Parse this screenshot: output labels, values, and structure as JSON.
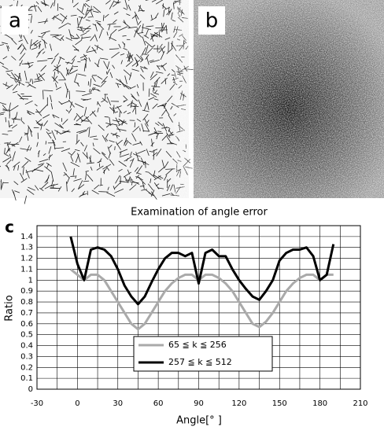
{
  "panels": {
    "a": "a",
    "b": "b"
  },
  "chart_data": {
    "type": "line",
    "panel_label": "c",
    "title": "Examination of angle error",
    "x_label": "Angle[° ]",
    "y_label": "Ratio",
    "x": [
      -5,
      0,
      5,
      10,
      15,
      20,
      25,
      30,
      35,
      40,
      45,
      50,
      55,
      60,
      65,
      70,
      75,
      80,
      85,
      90,
      95,
      100,
      105,
      110,
      115,
      120,
      125,
      130,
      135,
      140,
      145,
      150,
      155,
      160,
      165,
      170,
      175,
      180,
      185,
      190
    ],
    "series": [
      {
        "name": "65 ≦ k ≦ 256",
        "color": "#aaaaaa",
        "values": [
          1.1,
          1.05,
          1.0,
          1.05,
          1.05,
          1.0,
          0.9,
          0.8,
          0.7,
          0.6,
          0.55,
          0.6,
          0.7,
          0.8,
          0.9,
          0.97,
          1.02,
          1.05,
          1.05,
          1.0,
          1.05,
          1.05,
          1.02,
          0.97,
          0.9,
          0.8,
          0.7,
          0.6,
          0.57,
          0.62,
          0.7,
          0.8,
          0.9,
          0.97,
          1.02,
          1.05,
          1.05,
          1.0,
          1.05,
          1.05
        ]
      },
      {
        "name": "257 ≦ k ≦ 512",
        "color": "#000000",
        "values": [
          1.4,
          1.15,
          1.0,
          1.28,
          1.3,
          1.28,
          1.22,
          1.1,
          0.95,
          0.85,
          0.78,
          0.85,
          0.98,
          1.1,
          1.2,
          1.25,
          1.25,
          1.22,
          1.25,
          0.97,
          1.25,
          1.28,
          1.22,
          1.22,
          1.1,
          1.0,
          0.92,
          0.85,
          0.82,
          0.9,
          1.0,
          1.18,
          1.25,
          1.28,
          1.28,
          1.3,
          1.22,
          1.0,
          1.05,
          1.33
        ]
      }
    ],
    "xlim": [
      -30,
      210
    ],
    "xticks": [
      -30,
      0,
      30,
      60,
      90,
      120,
      150,
      180,
      210
    ],
    "ylim": [
      0,
      1.5
    ],
    "yticks": [
      0,
      0.1,
      0.2,
      0.3,
      0.4,
      0.5,
      0.6,
      0.7,
      0.8,
      0.9,
      1,
      1.1,
      1.2,
      1.3,
      1.4
    ],
    "grid": true,
    "legend": "bottom-center"
  }
}
